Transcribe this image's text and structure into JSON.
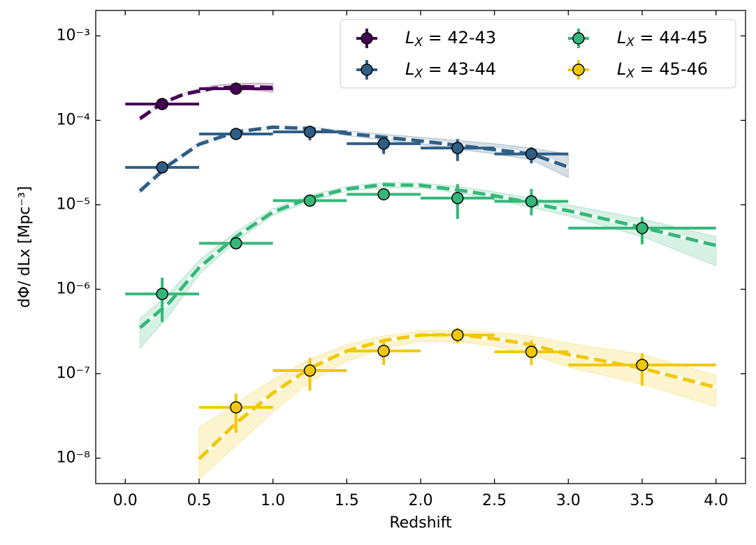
{
  "chart_data": {
    "type": "errorbar",
    "x_label": "Redshift",
    "y_label": "dΦ/ dLx [Mpc⁻³]",
    "xlim": [
      -0.2,
      4.2
    ],
    "ylim": [
      5e-09,
      0.002
    ],
    "log_y": true,
    "legend": "upper right",
    "xticks": [
      {
        "value": 0,
        "label": "0.0"
      },
      {
        "value": 0.5,
        "label": "0.5"
      },
      {
        "value": 1,
        "label": "1.0"
      },
      {
        "value": 1.5,
        "label": "1.5"
      },
      {
        "value": 2,
        "label": "2.0"
      },
      {
        "value": 2.5,
        "label": "2.5"
      },
      {
        "value": 3,
        "label": "3.0"
      },
      {
        "value": 3.5,
        "label": "3.5"
      },
      {
        "value": 4,
        "label": "4.0"
      }
    ],
    "yticks": [
      {
        "value": 1e-08,
        "label": "10⁻⁸"
      },
      {
        "value": 1e-07,
        "label": "10⁻⁷"
      },
      {
        "value": 1e-06,
        "label": "10⁻⁶"
      },
      {
        "value": 1e-05,
        "label": "10⁻⁵"
      },
      {
        "value": 0.0001,
        "label": "10⁻⁴"
      },
      {
        "value": 0.001,
        "label": "10⁻³"
      }
    ],
    "series": [
      {
        "name": "LX =  42-43",
        "color": "#440154",
        "x": [
          0.25,
          0.75
        ],
        "values": [
          0.000156,
          0.000237
        ],
        "xlow": [
          0,
          0.5
        ],
        "xhigh": [
          0.5,
          1.0
        ],
        "ylow": [
          0.000148,
          0.000227
        ],
        "yhigh": [
          0.000164,
          0.000247
        ],
        "model": {
          "x": [
            0.1,
            0.25,
            0.4,
            0.6,
            0.8,
            1.0
          ],
          "values": [
            0.000105,
            0.00016,
            0.000205,
            0.00024,
            0.00025,
            0.000245
          ],
          "upper": [
            0.00011,
            0.000165,
            0.000215,
            0.00026,
            0.000275,
            0.000275
          ],
          "lower": [
            0.0001,
            0.000155,
            0.000195,
            0.00023,
            0.000235,
            0.000215
          ]
        }
      },
      {
        "name": "LX =  43-44",
        "color": "#2e5e86",
        "x": [
          0.25,
          0.75,
          1.25,
          1.75,
          2.25,
          2.75
        ],
        "values": [
          2.77e-05,
          6.9e-05,
          7.3e-05,
          5.3e-05,
          4.7e-05,
          4e-05
        ],
        "xlow": [
          0,
          0.5,
          1.0,
          1.5,
          2.0,
          2.5
        ],
        "xhigh": [
          0.5,
          1.0,
          1.5,
          2.0,
          2.5,
          3.0
        ],
        "ylow": [
          2.4e-05,
          6.3e-05,
          5.8e-05,
          4e-05,
          3.3e-05,
          3.1e-05
        ],
        "yhigh": [
          3.2e-05,
          7.6e-05,
          8.5e-05,
          6.4e-05,
          6e-05,
          4.8e-05
        ],
        "model": {
          "x": [
            0.1,
            0.3,
            0.5,
            0.75,
            1.0,
            1.25,
            1.5,
            2.0,
            2.5,
            2.75,
            3.0
          ],
          "values": [
            1.46e-05,
            3e-05,
            5.2e-05,
            7.3e-05,
            8.3e-05,
            8e-05,
            7e-05,
            5.7e-05,
            4.5e-05,
            4e-05,
            2.8e-05
          ],
          "upper": [
            1.55e-05,
            3.2e-05,
            5.5e-05,
            7.6e-05,
            8.6e-05,
            8.4e-05,
            7.5e-05,
            6.3e-05,
            5.3e-05,
            4.7e-05,
            4e-05
          ],
          "lower": [
            1.38e-05,
            2.85e-05,
            5e-05,
            7e-05,
            8e-05,
            7.7e-05,
            6.6e-05,
            5.2e-05,
            4e-05,
            3.4e-05,
            2.1e-05
          ]
        }
      },
      {
        "name": "LX =  44-45",
        "color": "#35b779",
        "x": [
          0.25,
          0.75,
          1.25,
          1.75,
          2.25,
          2.75,
          3.5
        ],
        "values": [
          8.8e-07,
          3.5e-06,
          1.12e-05,
          1.33e-05,
          1.2e-05,
          1.1e-05,
          5.3e-06
        ],
        "xlow": [
          0,
          0.5,
          1.0,
          1.5,
          2.0,
          2.5,
          3.0
        ],
        "xhigh": [
          0.5,
          1.0,
          1.5,
          2.0,
          2.5,
          3.0,
          4.0
        ],
        "ylow": [
          4.1e-07,
          3.2e-06,
          1e-05,
          1.22e-05,
          6.8e-06,
          7.5e-06,
          3.4e-06
        ],
        "yhigh": [
          1.37e-06,
          3.8e-06,
          1.25e-05,
          1.45e-05,
          1.76e-05,
          1.54e-05,
          7.2e-06
        ],
        "model": {
          "x": [
            0.1,
            0.3,
            0.5,
            0.75,
            1.0,
            1.25,
            1.5,
            1.75,
            2.0,
            2.25,
            2.5,
            2.75,
            3.0,
            3.5,
            4.0
          ],
          "values": [
            3.5e-07,
            7e-07,
            1.8e-06,
            4.2e-06,
            8.2e-06,
            1.2e-05,
            1.54e-05,
            1.73e-05,
            1.7e-05,
            1.5e-05,
            1.28e-05,
            1.05e-05,
            8.5e-06,
            5.4e-06,
            3.3e-06
          ],
          "upper": [
            4.5e-07,
            9e-07,
            2.2e-06,
            4.8e-06,
            9e-06,
            1.3e-05,
            1.65e-05,
            1.85e-05,
            1.82e-05,
            1.65e-05,
            1.42e-05,
            1.2e-05,
            1e-05,
            6.8e-06,
            4.2e-06
          ],
          "lower": [
            2e-07,
            5e-07,
            1.5e-06,
            3.7e-06,
            7.5e-06,
            1.1e-05,
            1.45e-05,
            1.6e-05,
            1.58e-05,
            1.38e-05,
            1.15e-05,
            9.3e-06,
            7.4e-06,
            4.2e-06,
            1.9e-06
          ]
        }
      },
      {
        "name": "LX =  45-46",
        "color": "#f0c808",
        "x": [
          0.75,
          1.25,
          1.75,
          2.25,
          2.75,
          3.5
        ],
        "values": [
          4e-08,
          1.09e-07,
          1.86e-07,
          2.87e-07,
          1.82e-07,
          1.27e-07
        ],
        "xlow": [
          0.5,
          1.0,
          1.5,
          2.0,
          2.5,
          3.0
        ],
        "xhigh": [
          1.0,
          1.5,
          2.0,
          2.5,
          3.0,
          4.0
        ],
        "ylow": [
          2e-08,
          6.3e-08,
          1.27e-07,
          2.3e-07,
          1.27e-07,
          7.2e-08
        ],
        "yhigh": [
          5.8e-08,
          1.53e-07,
          2.5e-07,
          3.5e-07,
          2.5e-07,
          1.75e-07
        ],
        "model": {
          "x": [
            0.5,
            0.75,
            1.0,
            1.25,
            1.5,
            1.75,
            2.0,
            2.25,
            2.5,
            2.75,
            3.0,
            3.5,
            4.0
          ],
          "values": [
            9.8e-09,
            2.6e-08,
            5.9e-08,
            1.16e-07,
            1.86e-07,
            2.47e-07,
            2.87e-07,
            2.9e-07,
            2.6e-07,
            2.2e-07,
            1.69e-07,
            1.16e-07,
            6.9e-08
          ],
          "upper": [
            2.3e-08,
            4.5e-08,
            8.5e-08,
            1.5e-07,
            2.2e-07,
            2.8e-07,
            3.2e-07,
            3.3e-07,
            3.1e-07,
            2.8e-07,
            2.3e-07,
            1.7e-07,
            9.6e-08
          ],
          "lower": [
            5.6e-09,
            1.4e-08,
            3.5e-08,
            8e-08,
            1.4e-07,
            2e-07,
            2.4e-07,
            2.4e-07,
            2.1e-07,
            1.7e-07,
            1.2e-07,
            7.5e-08,
            4.1e-08
          ]
        }
      }
    ]
  }
}
